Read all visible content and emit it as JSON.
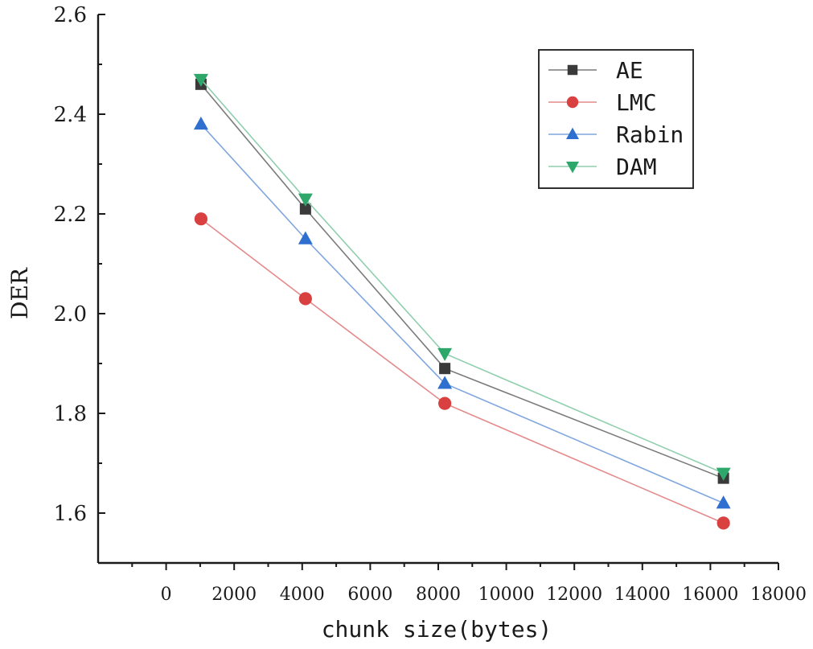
{
  "chart_data": {
    "type": "line",
    "title": "",
    "xlabel": "chunk size(bytes)",
    "ylabel": "DER",
    "xlim": [
      -2000,
      18000
    ],
    "ylim": [
      1.5,
      2.6
    ],
    "x_ticks": [
      0,
      2000,
      4000,
      6000,
      8000,
      10000,
      12000,
      14000,
      16000,
      18000
    ],
    "x_tick_labels": [
      "0",
      "2000",
      "4000",
      "6000",
      "8000",
      "10000",
      "12000",
      "14000",
      "16000",
      "18000"
    ],
    "y_ticks": [
      1.6,
      1.8,
      2.0,
      2.2,
      2.4,
      2.6
    ],
    "y_tick_labels": [
      "1.6",
      "1.8",
      "2.0",
      "2.2",
      "2.4",
      "2.6"
    ],
    "grid": false,
    "legend_position": "top-right",
    "x": [
      1024,
      4096,
      8192,
      16384
    ],
    "series": [
      {
        "name": "AE",
        "marker": "square",
        "color": "#3a3a3a",
        "line_color": "#7a7a7a",
        "values": [
          2.46,
          2.21,
          1.89,
          1.67
        ]
      },
      {
        "name": "LMC",
        "marker": "circle",
        "color": "#d94040",
        "line_color": "#e48a8a",
        "values": [
          2.19,
          2.03,
          1.82,
          1.58
        ]
      },
      {
        "name": "Rabin",
        "marker": "triangle-up",
        "color": "#2e6fd0",
        "line_color": "#7fa6de",
        "values": [
          2.38,
          2.15,
          1.86,
          1.62
        ]
      },
      {
        "name": "DAM",
        "marker": "triangle-down",
        "color": "#2ea86a",
        "line_color": "#8fcfae",
        "values": [
          2.47,
          2.23,
          1.92,
          1.68
        ]
      }
    ]
  }
}
